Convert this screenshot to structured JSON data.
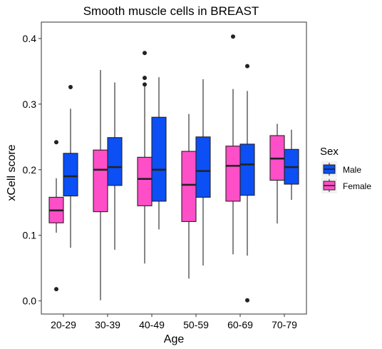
{
  "chart_data": {
    "type": "boxplot",
    "title": "Smooth muscle cells in BREAST",
    "xlabel": "Age",
    "ylabel": "xCell score",
    "categories": [
      "20-29",
      "30-39",
      "40-49",
      "50-59",
      "60-69",
      "70-79"
    ],
    "ylim": [
      -0.02,
      0.425
    ],
    "yticks": [
      0.0,
      0.1,
      0.2,
      0.3,
      0.4
    ],
    "ytick_labels": [
      "0.0",
      "0.1",
      "0.2",
      "0.3",
      "0.4"
    ],
    "grid": false,
    "legend": {
      "title": "Sex",
      "position": "right",
      "entries": [
        "Male",
        "Female"
      ]
    },
    "series": [
      {
        "name": "Female",
        "color": "#ff4fc8",
        "boxes": [
          {
            "category": "20-29",
            "q1": 0.119,
            "median": 0.138,
            "q3": 0.158,
            "whisker_low": 0.104,
            "whisker_high": 0.187,
            "outliers": [
              0.242,
              0.018
            ]
          },
          {
            "category": "30-39",
            "q1": 0.136,
            "median": 0.2,
            "q3": 0.23,
            "whisker_low": 0.001,
            "whisker_high": 0.352,
            "outliers": []
          },
          {
            "category": "40-49",
            "q1": 0.145,
            "median": 0.186,
            "q3": 0.219,
            "whisker_low": 0.057,
            "whisker_high": 0.328,
            "outliers": [
              0.378,
              0.34,
              0.33
            ]
          },
          {
            "category": "50-59",
            "q1": 0.121,
            "median": 0.177,
            "q3": 0.228,
            "whisker_low": 0.034,
            "whisker_high": 0.285,
            "outliers": []
          },
          {
            "category": "60-69",
            "q1": 0.152,
            "median": 0.206,
            "q3": 0.236,
            "whisker_low": 0.071,
            "whisker_high": 0.323,
            "outliers": [
              0.403
            ]
          },
          {
            "category": "70-79",
            "q1": 0.184,
            "median": 0.217,
            "q3": 0.252,
            "whisker_low": 0.118,
            "whisker_high": 0.27,
            "outliers": []
          }
        ]
      },
      {
        "name": "Male",
        "color": "#0b4ff5",
        "boxes": [
          {
            "category": "20-29",
            "q1": 0.16,
            "median": 0.19,
            "q3": 0.225,
            "whisker_low": 0.081,
            "whisker_high": 0.293,
            "outliers": [
              0.326
            ]
          },
          {
            "category": "30-39",
            "q1": 0.176,
            "median": 0.204,
            "q3": 0.249,
            "whisker_low": 0.078,
            "whisker_high": 0.333,
            "outliers": []
          },
          {
            "category": "40-49",
            "q1": 0.152,
            "median": 0.2,
            "q3": 0.28,
            "whisker_low": 0.109,
            "whisker_high": 0.341,
            "outliers": []
          },
          {
            "category": "50-59",
            "q1": 0.158,
            "median": 0.198,
            "q3": 0.25,
            "whisker_low": 0.054,
            "whisker_high": 0.338,
            "outliers": []
          },
          {
            "category": "60-69",
            "q1": 0.161,
            "median": 0.208,
            "q3": 0.239,
            "whisker_low": 0.069,
            "whisker_high": 0.32,
            "outliers": [
              0.358,
              0.001
            ]
          },
          {
            "category": "70-79",
            "q1": 0.178,
            "median": 0.204,
            "q3": 0.231,
            "whisker_low": 0.154,
            "whisker_high": 0.261,
            "outliers": []
          }
        ]
      }
    ]
  }
}
